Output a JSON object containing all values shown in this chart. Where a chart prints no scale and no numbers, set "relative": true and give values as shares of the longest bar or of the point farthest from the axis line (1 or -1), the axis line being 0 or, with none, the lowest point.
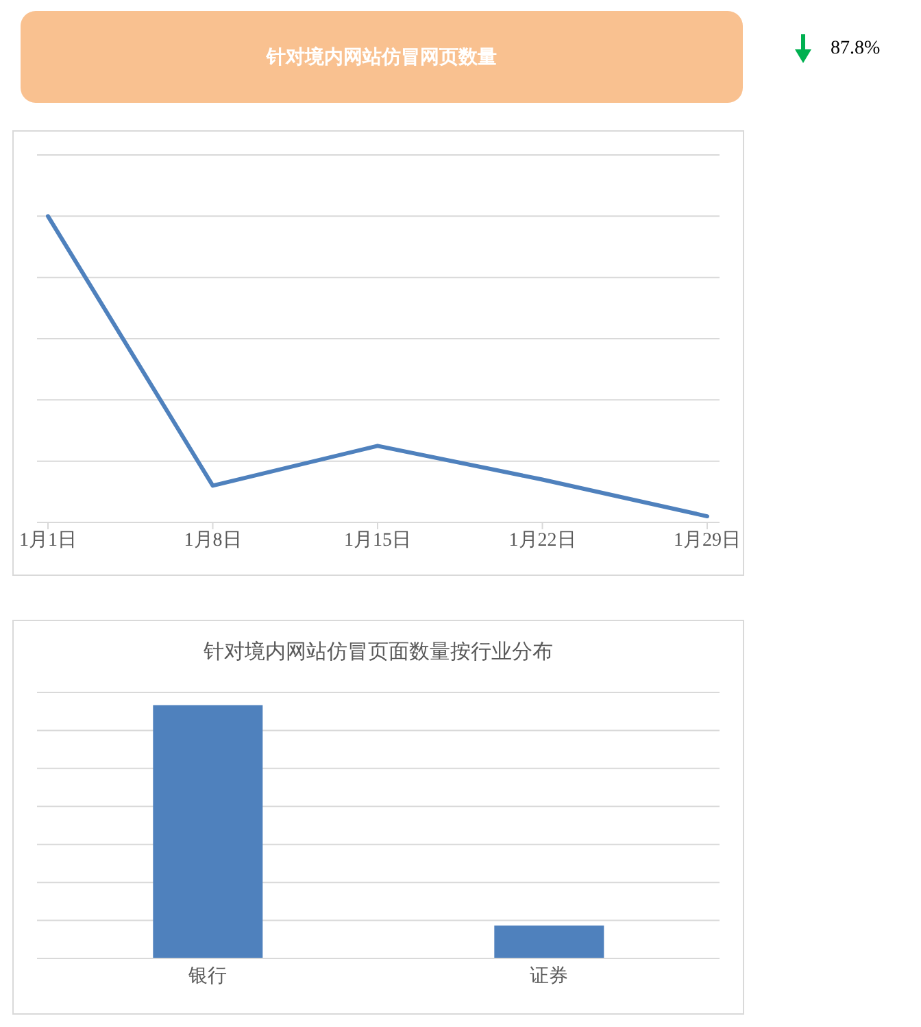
{
  "chart_data": [
    {
      "type": "line",
      "title": "针对境内网站仿冒网页数量",
      "annotations": [
        "87.8%"
      ],
      "categories": [
        "1月1日",
        "1月8日",
        "1月15日",
        "1月22日",
        "1月29日"
      ],
      "series": [
        {
          "color": "#4f81bd",
          "values": [
            1,
            0.12,
            0.25,
            0.14,
            0.02
          ]
        }
      ],
      "relative": true,
      "grid": "y",
      "marker": "none"
    },
    {
      "type": "bar",
      "title": "针对境内网站仿冒页面数量按行业分布",
      "categories": [
        "银行",
        "证券"
      ],
      "values": [
        1,
        0.13
      ],
      "color": "#4f81bd",
      "relative": true,
      "grid": "y"
    }
  ]
}
